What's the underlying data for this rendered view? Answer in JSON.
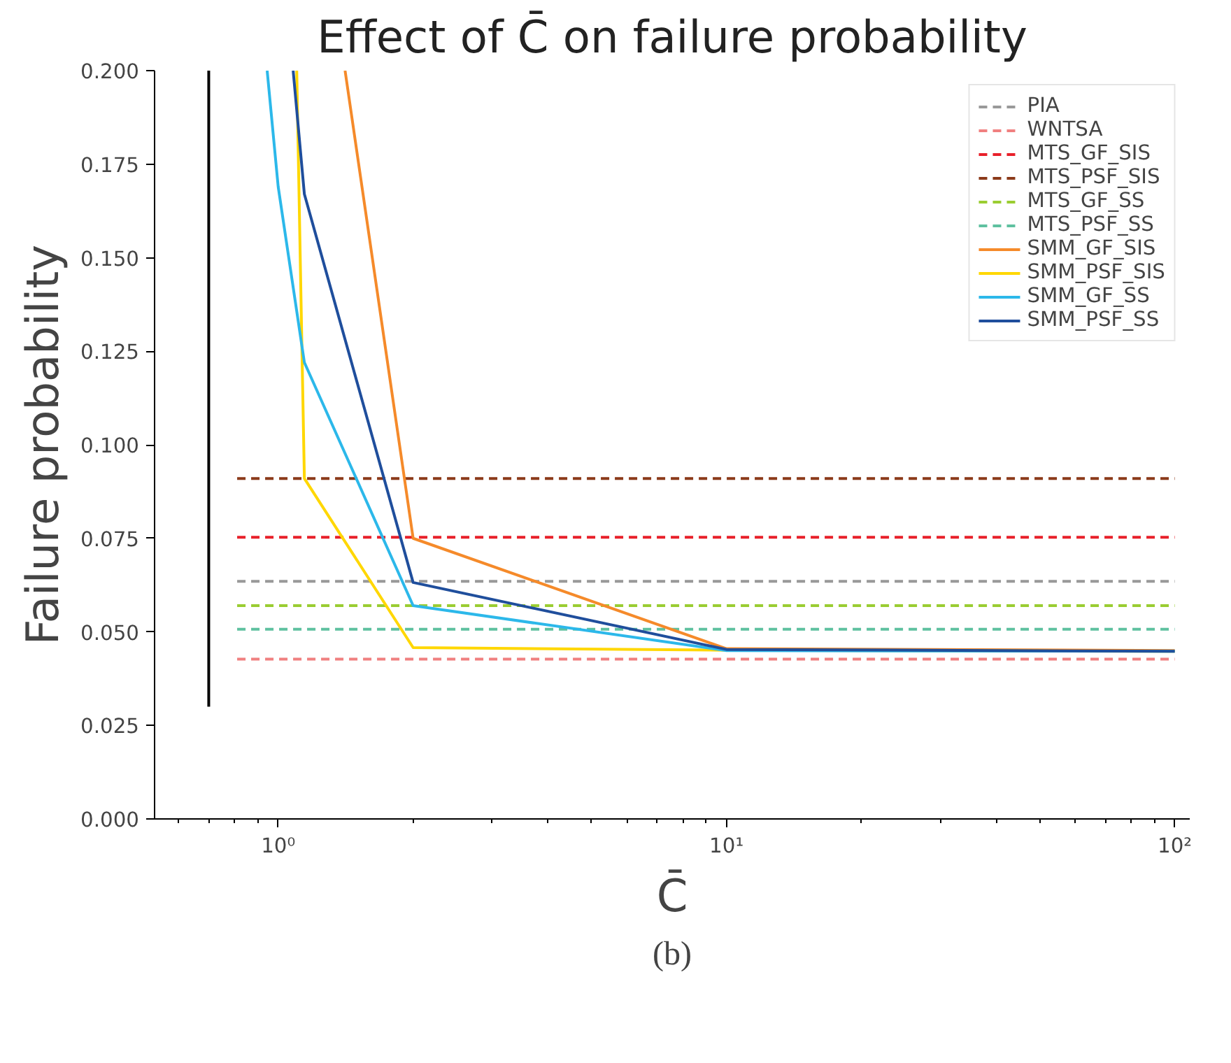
{
  "chart_data": {
    "type": "line",
    "title": "Effect of C̄ on failure probability",
    "xlabel": "C̄",
    "ylabel": "Failure probability",
    "annotations": [
      "(b)"
    ],
    "log": "x",
    "xlim": [
      0.53,
      108
    ],
    "ylim": [
      0,
      0.2
    ],
    "xticks": [
      {
        "value": 1,
        "label": "10⁰"
      },
      {
        "value": 10,
        "label": "10¹"
      },
      {
        "value": 100,
        "label": "10²"
      }
    ],
    "yticks": [
      {
        "value": 0,
        "label": "0.000"
      },
      {
        "value": 0.025,
        "label": "0.025"
      },
      {
        "value": 0.05,
        "label": "0.050"
      },
      {
        "value": 0.075,
        "label": "0.075"
      },
      {
        "value": 0.1,
        "label": "0.100"
      },
      {
        "value": 0.125,
        "label": "0.125"
      },
      {
        "value": 0.15,
        "label": "0.150"
      },
      {
        "value": 0.175,
        "label": "0.175"
      },
      {
        "value": 0.2,
        "label": "0.200"
      }
    ],
    "grid": false,
    "legend": "top right",
    "series": [
      {
        "name": "PIA",
        "color": "#999999",
        "line_style": "dashed",
        "x": [
          0.81,
          100
        ],
        "values": [
          0.0635,
          0.0635
        ]
      },
      {
        "name": "WNTSA",
        "color": "#f08080",
        "line_style": "dashed",
        "x": [
          0.81,
          100
        ],
        "values": [
          0.0427,
          0.0427
        ]
      },
      {
        "name": "MTS_GF_SIS",
        "color": "#e8202a",
        "line_style": "dashed",
        "x": [
          0.81,
          100
        ],
        "values": [
          0.0753,
          0.0753
        ]
      },
      {
        "name": "MTS_PSF_SIS",
        "color": "#8b3a1a",
        "line_style": "dashed",
        "x": [
          0.81,
          100
        ],
        "values": [
          0.091,
          0.091
        ]
      },
      {
        "name": "MTS_GF_SS",
        "color": "#9acd32",
        "line_style": "dashed",
        "x": [
          0.81,
          100
        ],
        "values": [
          0.057,
          0.057
        ]
      },
      {
        "name": "MTS_PSF_SS",
        "color": "#5fc1a0",
        "line_style": "dashed",
        "x": [
          0.81,
          100
        ],
        "values": [
          0.0507,
          0.0507
        ]
      },
      {
        "name": "SMM_GF_SIS",
        "color": "#f58a2a",
        "line_style": "solid",
        "x": [
          1.41,
          2,
          10,
          100
        ],
        "values": [
          0.2,
          0.075,
          0.0455,
          0.045
        ]
      },
      {
        "name": "SMM_PSF_SIS",
        "color": "#ffd700",
        "line_style": "solid",
        "x": [
          1.1,
          1.144,
          2,
          10,
          100
        ],
        "values": [
          0.2,
          0.091,
          0.0458,
          0.0451,
          0.0448
        ]
      },
      {
        "name": "SMM_GF_SS",
        "color": "#2cb8ea",
        "line_style": "solid",
        "x": [
          0.945,
          1.0,
          1.144,
          2,
          10,
          100
        ],
        "values": [
          0.2,
          0.169,
          0.122,
          0.057,
          0.045,
          0.0448
        ]
      },
      {
        "name": "SMM_PSF_SS",
        "color": "#1f4e9c",
        "line_style": "solid",
        "x": [
          1.08,
          1.144,
          2,
          10,
          100
        ],
        "values": [
          0.2,
          0.167,
          0.0632,
          0.0453,
          0.0448
        ]
      },
      {
        "color": "#000000",
        "line_style": "solid",
        "x": [
          0.7,
          0.7
        ],
        "values": [
          0.03,
          0.2
        ]
      }
    ]
  }
}
